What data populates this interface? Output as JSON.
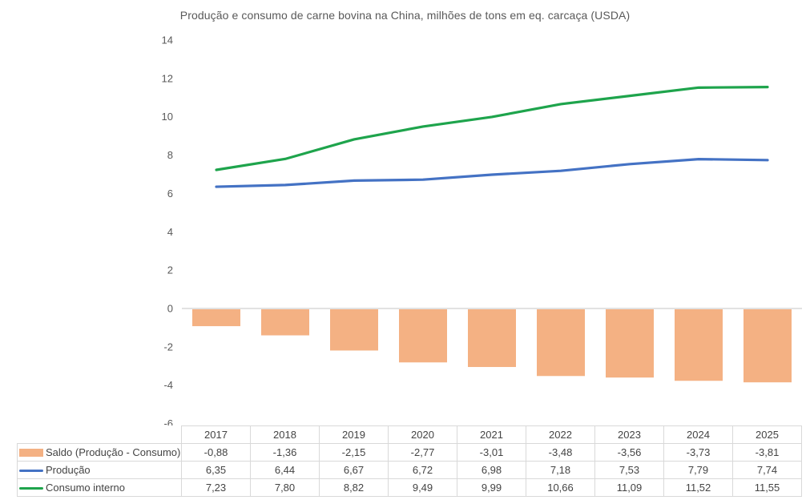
{
  "chart_data": {
    "type": "combo",
    "title": "Produção e consumo de carne bovina na China, milhões de tons em eq. carcaça (USDA)",
    "categories": [
      "2017",
      "2018",
      "2019",
      "2020",
      "2021",
      "2022",
      "2023",
      "2024",
      "2025"
    ],
    "series": [
      {
        "name": "Saldo (Produção - Consumo)",
        "type": "bar",
        "color": "#F4B183",
        "values": [
          -0.88,
          -1.36,
          -2.15,
          -2.77,
          -3.01,
          -3.48,
          -3.56,
          -3.73,
          -3.81
        ]
      },
      {
        "name": "Produção",
        "type": "line",
        "color": "#4472C4",
        "values": [
          6.35,
          6.44,
          6.67,
          6.72,
          6.98,
          7.18,
          7.53,
          7.79,
          7.74
        ]
      },
      {
        "name": "Consumo interno",
        "type": "line",
        "color": "#1EA44C",
        "values": [
          7.23,
          7.8,
          8.82,
          9.49,
          9.99,
          10.66,
          11.09,
          11.52,
          11.55
        ]
      }
    ],
    "xlabel": "",
    "ylabel": "",
    "ylim": [
      -6,
      14
    ],
    "ytick_step": 2,
    "grid": false,
    "legend_position": "table-left",
    "value_decimal_separator": ",",
    "axis_color": "#D9D9D9",
    "text_color": "#595959"
  }
}
